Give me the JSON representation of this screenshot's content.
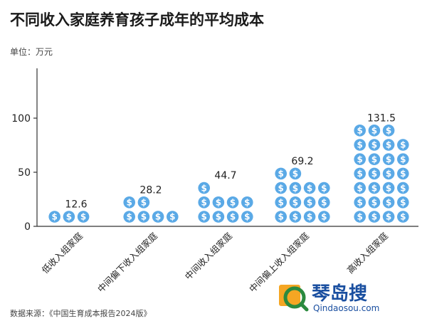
{
  "title": "不同收入家庭养育孩子成年的平均成本",
  "unit": "单位：万元",
  "source": "数据来源：《中国生育成本报告2024版》",
  "brand": {
    "name": "琴岛搜",
    "url": "Qindaosou.com"
  },
  "colors": {
    "coin": "#5aa9e6",
    "coin_symbol": "#ffffff",
    "axis": "#333333",
    "text": "#222222"
  },
  "chart_data": {
    "type": "bar",
    "categories": [
      "低收入组家庭",
      "中间偏下收入组家庭",
      "中间收入组家庭",
      "中间偏上收入组家庭",
      "高收入组家庭"
    ],
    "values": [
      12.6,
      28.2,
      44.7,
      69.2,
      131.5
    ],
    "value_labels": [
      "12.6",
      "28.2",
      "44.7",
      "69.2",
      "131.5"
    ],
    "yticks": [
      "0",
      "50",
      "100"
    ],
    "ylim": [
      0,
      140
    ],
    "unit": "万元",
    "marker": "$"
  }
}
